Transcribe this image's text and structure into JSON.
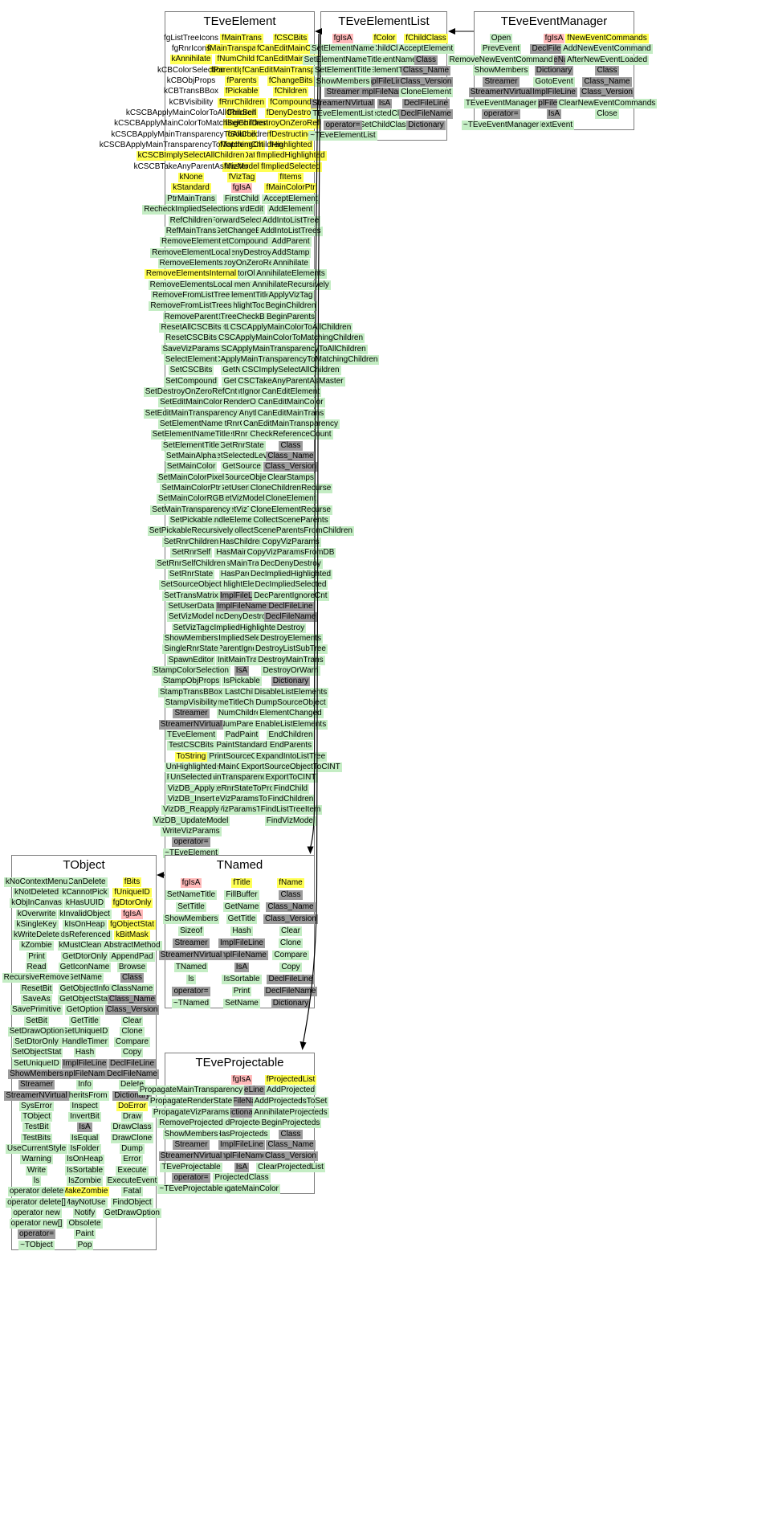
{
  "diagram": {
    "title": "ROOT class inheritance / member chart",
    "colors": {
      "protected_or_data": "#ffff54",
      "public_method": "#c4edc4",
      "meta_method": "#9c9c9c",
      "static_isa": "#ffb9b9",
      "enum_plain": "#ffffff",
      "arrow": "#000000",
      "border": "#7d7d7d"
    },
    "inherits": [
      {
        "from": "TEveElementList",
        "to": "TEveElement"
      },
      {
        "from": "TEveEventManager",
        "to": "TEveElementList"
      },
      {
        "from": "TEveElementList",
        "to": "TNamed"
      },
      {
        "from": "TEveElementList",
        "to": "TEveProjectable"
      },
      {
        "from": "TNamed",
        "to": "TObject"
      }
    ],
    "classes": [
      {
        "name": "TEveElement",
        "cols": [
          [
            "fgListTreeIcons|w",
            "fgRnrIcons|w",
            "kAnnihilate|y",
            "kCBColorSelection|w",
            "kCBObjProps|w",
            "kCBTransBBox|w",
            "kCBVisibility|w",
            "kCSCBApplyMainColorToAllChildren|w",
            "kCSCBApplyMainColorToMatchingChildren|w",
            "kCSCBApplyMainTransparencyToAllChildren|w",
            "kCSCBApplyMainTransparencyToMatchingChildren|w",
            "kCSCBImplySelectAllChildren|y",
            "kCSCBTakeAnyParentAsMaster|w",
            "kNone|y",
            "kStandard|y",
            "PtrMainTrans|m",
            "RecheckImpliedSelections|m",
            "RefChildren|m",
            "RefMainTrans|m",
            "RemoveElement|m",
            "RemoveElementLocal|m",
            "RemoveElements|m",
            "RemoveElementsInternal|y",
            "RemoveElementsLocal|m",
            "RemoveFromListTree|m",
            "RemoveFromListTrees|m",
            "RemoveParent|m",
            "ResetAllCSCBits|m",
            "ResetCSCBits|m",
            "SaveVizParams|m",
            "SelectElement|m",
            "SetCSCBits|m",
            "SetCompound|m",
            "SetDestroyOnZeroRefCnt|m",
            "SetEditMainColor|m",
            "SetEditMainTransparency|m",
            "SetElementName|m",
            "SetElementNameTitle|m",
            "SetElementTitle|m",
            "SetMainAlpha|m",
            "SetMainColor|m",
            "SetMainColorPixel|m",
            "SetMainColorPtr|m",
            "SetMainColorRGB|m",
            "SetMainTransparency|m",
            "SetPickable|m",
            "SetPickableRecursively|m",
            "SetRnrChildren|m",
            "SetRnrSelf|m",
            "SetRnrSelfChildren|m",
            "SetRnrState|m",
            "SetSourceObject|m",
            "SetTransMatrix|m",
            "SetUserData|m",
            "SetVizModel|m",
            "SetVizTag|m",
            "ShowMembers|m",
            "SingleRnrState|m",
            "SpawnEditor|m",
            "StampColorSelection|m",
            "StampObjProps|m",
            "StampTransBBox|m",
            "StampVisibility|m",
            "Streamer|x",
            "StreamerNVirtual|x",
            "TEveElement|m",
            "TestCSCBits|m",
            "ToString|y",
            "UnHighlighted|m",
            "UnSelected|m",
            "VizDB_Apply|m",
            "VizDB_Insert|m",
            "VizDB_Reapply|m",
            "VizDB_UpdateModel|m",
            "WriteVizParams|m",
            "operator=|x",
            "~TEveElement|m"
          ],
          [
            "fMainTrans|y",
            "fMainTransparency|y",
            "fNumChildren|y",
            "fParentIgnoreCnt|y",
            "fParents|y",
            "fPickable|y",
            "fRnrChildren|y",
            "fRnrSelf|y",
            "fSelected|y",
            "fSource|y",
            "fTopItemCnt|y",
            "fUserData|y",
            "fVizModel|y",
            "fVizTag|y",
            "fgIsA|p",
            "FirstChild|m",
            "ForwardEdit|m",
            "ForwardSelection|m",
            "GetChangeBits|m",
            "GetCompound|m",
            "GetDenyDestroy|m",
            "GetDestroyOnZeroRefCnt|m",
            "GetEditorObject|m",
            "GetElementName|m",
            "GetElementTitle|m",
            "GetHighlightTooltip|m",
            "GetListTreeCheckBoxIcon|m",
            "GetListTreeIcon|m",
            "GetMainColor|m",
            "GetMainTransparency|m",
            "GetMaster|m",
            "GetNItems|m",
            "GetObject|m",
            "GetParentIgnoreCnt|m",
            "GetRenderObject|m",
            "GetRnrAnything|m",
            "GetRnrChildren|m",
            "GetRnrSelf|m",
            "GetRnrState|m",
            "GetSelectedLevel|m",
            "GetSource|m",
            "GetSourceObject|m",
            "GetUserData|m",
            "GetVizModel|m",
            "GetVizTag|m",
            "HandleElementPaste|m",
            "HasChild|m",
            "HasChildren|m",
            "HasMainColor|m",
            "HasMainTrans|m",
            "HasParents|m",
            "HighlightElement|m",
            "ImplFileLine|x",
            "ImplFileName|x",
            "IncDenyDestroy|m",
            "IncImpliedHighlighted|m",
            "IncImpliedSelected|m",
            "IncParentIgnoreCnt|m",
            "InitMainTrans|m",
            "IsA|x",
            "IsPickable|m",
            "LastChild|m",
            "NameTitleChanged|m",
            "NumChildren|m",
            "NumParents|m",
            "PadPaint|m",
            "PaintStandard|m",
            "PrintSourceObject|m",
            "PropagateMainColorToProjecteds|m",
            "PropagateMainTransparencyToProjecteds|m",
            "PropagateRnrStateToProjecteds|m",
            "PropagateVizParamsToElements|m",
            "PropagateVizParamsToProjecteds|m"
          ],
          [
            "fCSCBits|y",
            "fCanEditMainColor|y",
            "fCanEditMainTrans|y",
            "fCanEditMainTransparency|y",
            "fChangeBits|y",
            "fChildren|y",
            "fCompound|y",
            "fDenyDestroy|y",
            "fDestroyOnZeroRefCnt|y",
            "fDestructing|y",
            "fHighlighted|y",
            "fImpliedHighlighted|y",
            "fImpliedSelected|y",
            "fItems|y",
            "fMainColorPtr|y",
            "AcceptElement|m",
            "AddElement|m",
            "AddIntoListTree|m",
            "AddIntoListTrees|m",
            "AddParent|m",
            "AddStamp|m",
            "Annihilate|m",
            "AnnihilateElements|m",
            "AnnihilateRecursively|m",
            "ApplyVizTag|m",
            "BeginChildren|m",
            "BeginParents|m",
            "CSCApplyMainColorToAllChildren|m",
            "CSCApplyMainColorToMatchingChildren|m",
            "CSCApplyMainTransparencyToAllChildren|m",
            "CSCApplyMainTransparencyToMatchingChildren|m",
            "CSCImplySelectAllChildren|m",
            "CSCTakeAnyParentAsMaster|m",
            "CanEditElement|m",
            "CanEditMainColor|m",
            "CanEditMainTrans|m",
            "CanEditMainTransparency|m",
            "CheckReferenceCount|m",
            "Class|x",
            "Class_Name|x",
            "Class_Version|x",
            "ClearStamps|m",
            "CloneChildrenRecurse|m",
            "CloneElement|m",
            "CloneElementRecurse|m",
            "CollectSceneParents|m",
            "CollectSceneParentsFromChildren|m",
            "CopyVizParams|m",
            "CopyVizParamsFromDB|m",
            "DecDenyDestroy|m",
            "DecImpliedHighlighted|m",
            "DecImpliedSelected|m",
            "DecParentIgnoreCnt|m",
            "DeclFileLine|x",
            "DeclFileName|x",
            "Destroy|m",
            "DestroyElements|m",
            "DestroyListSubTree|m",
            "DestroyMainTrans|m",
            "DestroyOrWarn|m",
            "Dictionary|x",
            "DisableListElements|m",
            "DumpSourceObject|m",
            "ElementChanged|m",
            "EnableListElements|m",
            "EndChildren|m",
            "EndParents|m",
            "ExpandIntoListTree|m",
            "ExportSourceObjectToCINT|m",
            "ExportToCINT|m",
            "FindChild|m",
            "FindChildren|m",
            "FindListTreeItem|m",
            "FindVizModel|m"
          ]
        ]
      },
      {
        "name": "TEveElementList",
        "cols": [
          [
            "fgIsA|p",
            "SetElementName|m",
            "SetElementNameTitle|m",
            "SetElementTitle|m",
            "ShowMembers|m",
            "Streamer|x",
            "StreamerNVirtual|x",
            "TEveElementList|m",
            "operator=|x",
            "~TEveElementList|m"
          ],
          [
            "fColor|y",
            "GetChildClass|m",
            "GetElementName|m",
            "GetElementTitle|m",
            "ImplFileLine|x",
            "ImplFileName|x",
            "IsA|x",
            "ProjectedClass|m",
            "SetChildClass|m"
          ],
          [
            "fChildClass|y",
            "AcceptElement|m",
            "Class|x",
            "Class_Name|x",
            "Class_Version|x",
            "CloneElement|m",
            "DeclFileLine|x",
            "DeclFileName|x",
            "Dictionary|x"
          ]
        ]
      },
      {
        "name": "TEveEventManager",
        "cols": [
          [
            "Open|m",
            "PrevEvent|m",
            "RemoveNewEventCommand|m",
            "ShowMembers|m",
            "Streamer|x",
            "StreamerNVirtual|x",
            "TEveEventManager|m",
            "operator=|x",
            "~TEveEventManager|m"
          ],
          [
            "fgIsA|p",
            "DeclFileLine|x",
            "DeclFileName|x",
            "Dictionary|x",
            "GotoEvent|m",
            "ImplFileLine|x",
            "ImplFileName|x",
            "IsA|x",
            "NextEvent|m"
          ],
          [
            "fNewEventCommands|y",
            "AddNewEventCommand|m",
            "AfterNewEventLoaded|m",
            "Class|x",
            "Class_Name|x",
            "Class_Version|x",
            "ClearNewEventCommands|m",
            "Close|m"
          ]
        ]
      },
      {
        "name": "TObject",
        "cols": [
          [
            "kNoContextMenu|m",
            "kNotDeleted|m",
            "kObjInCanvas|m",
            "kOverwrite|m",
            "kSingleKey|m",
            "kWriteDelete|m",
            "kZombie|m",
            "Print|m",
            "Read|m",
            "RecursiveRemove|m",
            "ResetBit|m",
            "SaveAs|m",
            "SavePrimitive|m",
            "SetBit|m",
            "SetDrawOption|m",
            "SetDtorOnly|m",
            "SetObjectStat|m",
            "SetUniqueID|m",
            "ShowMembers|x",
            "Streamer|x",
            "StreamerNVirtual|x",
            "SysError|m",
            "TObject|m",
            "TestBit|m",
            "TestBits|m",
            "UseCurrentStyle|m",
            "Warning|m",
            "Write|m",
            "ls|m",
            "operator delete|m",
            "operator delete[]|m",
            "operator new|m",
            "operator new[]|m",
            "operator=|x",
            "~TObject|m"
          ],
          [
            "kCanDelete|m",
            "kCannotPick|m",
            "kHasUUID|m",
            "kInvalidObject|m",
            "kIsOnHeap|m",
            "kIsReferenced|m",
            "kMustCleanup|m",
            "GetDtorOnly|m",
            "GetIconName|m",
            "GetName|m",
            "GetObjectInfo|m",
            "GetObjectStat|m",
            "GetOption|m",
            "GetTitle|m",
            "GetUniqueID|m",
            "HandleTimer|m",
            "Hash|m",
            "ImplFileLine|x",
            "ImplFileName|x",
            "Info|m",
            "InheritsFrom|m",
            "Inspect|m",
            "InvertBit|m",
            "IsA|x",
            "IsEqual|m",
            "IsFolder|m",
            "IsOnHeap|m",
            "IsSortable|m",
            "IsZombie|m",
            "MakeZombie|y",
            "MayNotUse|m",
            "Notify|m",
            "Obsolete|m",
            "Paint|m",
            "Pop|m"
          ],
          [
            "fBits|y",
            "fUniqueID|y",
            "fgDtorOnly|y",
            "fgIsA|p",
            "fgObjectStat|y",
            "kBitMask|y",
            "AbstractMethod|m",
            "AppendPad|m",
            "Browse|m",
            "Class|x",
            "ClassName|m",
            "Class_Name|x",
            "Class_Version|x",
            "Clear|m",
            "Clone|m",
            "Compare|m",
            "Copy|m",
            "DeclFileLine|x",
            "DeclFileName|x",
            "Delete|m",
            "Dictionary|x",
            "DoError|y",
            "Draw|m",
            "DrawClass|m",
            "DrawClone|m",
            "Dump|m",
            "Error|m",
            "Execute|m",
            "ExecuteEvent|m",
            "Fatal|m",
            "FindObject|m",
            "GetDrawOption|m"
          ]
        ]
      },
      {
        "name": "TNamed",
        "cols": [
          [
            "fgIsA|p",
            "SetNameTitle|m",
            "SetTitle|m",
            "ShowMembers|m",
            "Sizeof|m",
            "Streamer|x",
            "StreamerNVirtual|x",
            "TNamed|m",
            "ls|m",
            "operator=|x",
            "~TNamed|m"
          ],
          [
            "fTitle|y",
            "FillBuffer|m",
            "GetName|m",
            "GetTitle|m",
            "Hash|m",
            "ImplFileLine|x",
            "ImplFileName|x",
            "IsA|x",
            "IsSortable|m",
            "Print|m",
            "SetName|m"
          ],
          [
            "fName|y",
            "Class|x",
            "Class_Name|x",
            "Class_Version|x",
            "Clear|m",
            "Clone|m",
            "Compare|m",
            "Copy|m",
            "DeclFileLine|x",
            "DeclFileName|x",
            "Dictionary|x"
          ]
        ]
      },
      {
        "name": "TEveProjectable",
        "cols": [
          [
            "",
            "PropagateMainTransparency|m",
            "PropagateRenderState|m",
            "PropagateVizParams|m",
            "RemoveProjected|m",
            "ShowMembers|m",
            "Streamer|x",
            "StreamerNVirtual|x",
            "TEveProjectable|m",
            "operator=|x",
            "~TEveProjectable|m"
          ],
          [
            "fgIsA|p",
            "DeclFileLine|x",
            "DeclFileName|x",
            "Dictionary|x",
            "EndProjecteds|m",
            "HasProjecteds|m",
            "ImplFileLine|x",
            "ImplFileName|x",
            "IsA|x",
            "ProjectedClass|m",
            "PropagateMainColor|m"
          ],
          [
            "fProjectedList|y",
            "AddProjected|m",
            "AddProjectedsToSet|m",
            "AnnihilateProjecteds|m",
            "BeginProjecteds|m",
            "Class|x",
            "Class_Name|x",
            "Class_Version|x",
            "ClearProjectedList|m"
          ]
        ]
      }
    ]
  }
}
